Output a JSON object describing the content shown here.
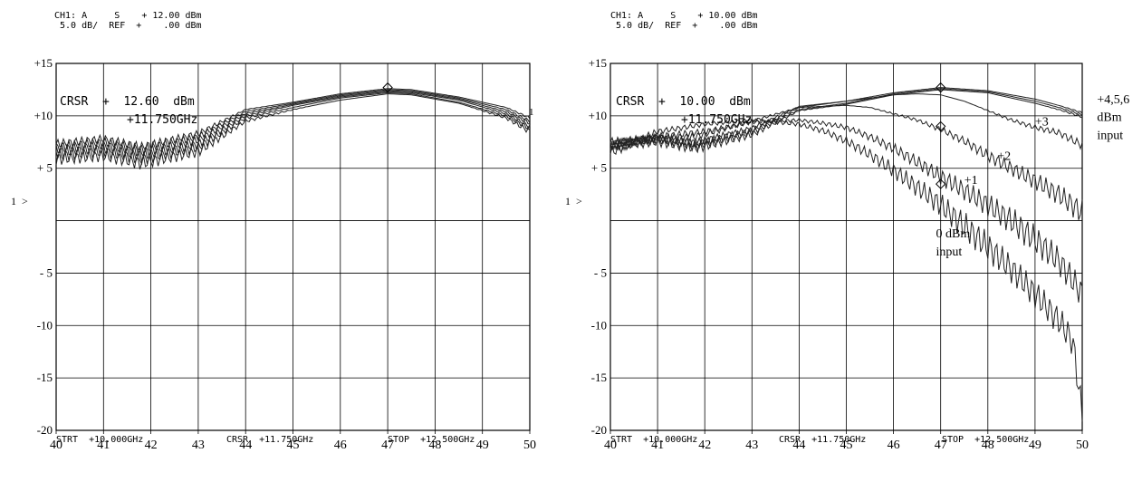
{
  "panels": [
    {
      "header": {
        "line1": "CH1: A     S    + 12.00 dBm",
        "line2": " 5.0 dB/  REF  +    .00 dBm"
      },
      "cursor": {
        "line1": "CRSR  +  12.60  dBm",
        "line2": "+11.750GHz"
      },
      "footer": {
        "start": "STRT  +10.000GHz",
        "center": "CRSR  +11.750GHz",
        "stop": "STOP  +12.500GHz"
      },
      "ref_marker": "1  >",
      "end_marker": "1",
      "annotations": []
    },
    {
      "header": {
        "line1": "CH1: A     S    + 10.00 dBm",
        "line2": " 5.0 dB/  REF  +    .00 dBm"
      },
      "cursor": {
        "line1": "CRSR  +  10.00  dBm",
        "line2": "+11.750GHz"
      },
      "footer": {
        "start": "STRT  +10.000GHz",
        "center": "CRSR  +11.750GHz",
        "stop": "STOP  +12.500GHz"
      },
      "ref_marker": "1  >",
      "end_marker": "",
      "annotations": [
        {
          "text": "+4,5,6",
          "x": 50.2,
          "y": 11.2
        },
        {
          "text": "dBm",
          "x": 50.2,
          "y": 9.5
        },
        {
          "text": "input",
          "x": 50.2,
          "y": 7.8
        },
        {
          "text": "+3",
          "x": 49.0,
          "y": 9.1
        },
        {
          "text": "+2",
          "x": 48.2,
          "y": 5.8
        },
        {
          "text": "+1",
          "x": 47.5,
          "y": 3.5
        },
        {
          "text": "0 dBm",
          "x": 46.9,
          "y": -1.6
        },
        {
          "text": "input",
          "x": 46.9,
          "y": -3.3
        }
      ]
    }
  ],
  "chart_data": [
    {
      "type": "line",
      "x_ticks": [
        "40",
        "41",
        "42",
        "43",
        "44",
        "45",
        "46",
        "47",
        "48",
        "49",
        "50"
      ],
      "y_ticks": [
        "+15",
        "+10",
        "+ 5",
        "",
        "- 5",
        "-10",
        "-15",
        "-20"
      ],
      "xlim": [
        40,
        50
      ],
      "ylim": [
        -20,
        15
      ],
      "grid": true,
      "series": [
        {
          "x": [
            40,
            41,
            41.8,
            43,
            44,
            45,
            46,
            47,
            47.5,
            48.5,
            49.5,
            50
          ],
          "values": [
            7.3,
            7.8,
            7.0,
            8.3,
            10.6,
            11.3,
            12.1,
            12.6,
            12.5,
            11.8,
            10.8,
            9.8
          ]
        },
        {
          "x": [
            40,
            41,
            41.8,
            43,
            44,
            45,
            46,
            47,
            47.5,
            48.5,
            49.5,
            50
          ],
          "values": [
            7.0,
            7.5,
            6.8,
            8.0,
            10.4,
            11.2,
            12.0,
            12.5,
            12.4,
            11.7,
            10.6,
            9.5
          ]
        },
        {
          "x": [
            40,
            41,
            41.8,
            43,
            44,
            45,
            46,
            47,
            47.5,
            48.5,
            49.5,
            50
          ],
          "values": [
            6.8,
            7.2,
            6.5,
            7.7,
            10.2,
            11.1,
            11.9,
            12.4,
            12.3,
            11.6,
            10.4,
            9.3
          ]
        },
        {
          "x": [
            40,
            41,
            41.8,
            43,
            44,
            45,
            46,
            47,
            47.5,
            48.5,
            49.5,
            50
          ],
          "values": [
            6.5,
            6.9,
            6.2,
            7.3,
            10.0,
            11.0,
            11.8,
            12.3,
            12.2,
            11.5,
            10.2,
            9.0
          ]
        },
        {
          "x": [
            40,
            41,
            41.8,
            43,
            44,
            45,
            46,
            47,
            47.5,
            48.5,
            49.5,
            50
          ],
          "values": [
            6.2,
            6.6,
            5.9,
            7.0,
            9.8,
            10.8,
            11.7,
            12.2,
            12.1,
            11.3,
            10.0,
            8.8
          ]
        },
        {
          "x": [
            40,
            41,
            41.8,
            43,
            44,
            45,
            46,
            47,
            47.5,
            48.5,
            49.5,
            50
          ],
          "values": [
            5.9,
            6.2,
            5.5,
            6.6,
            9.5,
            10.6,
            11.5,
            12.1,
            12.0,
            11.2,
            9.8,
            8.5
          ]
        }
      ]
    },
    {
      "type": "line",
      "x_ticks": [
        "40",
        "41",
        "42",
        "43",
        "44",
        "45",
        "46",
        "47",
        "48",
        "49",
        "50"
      ],
      "y_ticks": [
        "+15",
        "+10",
        "+ 5",
        "",
        "- 5",
        "-10",
        "-15",
        "-20"
      ],
      "xlim": [
        40,
        50
      ],
      "ylim": [
        -20,
        15
      ],
      "grid": true,
      "series": [
        {
          "x": [
            40,
            41,
            41.8,
            43,
            44,
            45,
            46,
            47,
            48,
            49,
            49.5,
            50
          ],
          "values": [
            7.5,
            7.9,
            7.3,
            8.6,
            10.8,
            11.4,
            12.2,
            12.7,
            12.4,
            11.6,
            11.0,
            10.3
          ]
        },
        {
          "x": [
            40,
            41,
            41.8,
            43,
            44,
            45,
            46,
            47,
            48,
            49,
            49.5,
            50
          ],
          "values": [
            7.3,
            7.7,
            7.1,
            8.4,
            10.6,
            11.2,
            12.1,
            12.6,
            12.3,
            11.4,
            10.8,
            10.1
          ]
        },
        {
          "x": [
            40,
            41,
            41.8,
            43,
            44,
            45,
            46,
            47,
            48,
            49,
            49.5,
            50
          ],
          "values": [
            7.1,
            7.5,
            6.9,
            8.2,
            10.5,
            11.1,
            12.0,
            12.5,
            12.2,
            11.2,
            10.6,
            9.9
          ]
        },
        {
          "x": [
            40,
            41,
            41.8,
            43,
            44,
            45,
            46,
            46.5,
            47,
            47.5,
            48,
            48.5,
            49,
            49.5,
            50
          ],
          "values": [
            7.3,
            7.8,
            7.4,
            8.8,
            10.9,
            11.4,
            12.0,
            12.1,
            12.0,
            11.4,
            10.5,
            9.6,
            8.9,
            8.4,
            7.2
          ]
        },
        {
          "x": [
            40,
            41,
            41.8,
            43,
            44,
            45,
            45.5,
            46,
            46.5,
            47,
            47.5,
            48,
            48.5,
            49,
            49.5,
            50
          ],
          "values": [
            7.0,
            7.9,
            8.0,
            9.5,
            10.8,
            11.0,
            10.8,
            10.2,
            9.6,
            8.7,
            7.6,
            6.2,
            5.0,
            3.8,
            2.5,
            0.8
          ]
        },
        {
          "x": [
            40,
            41,
            42,
            43,
            44,
            44.5,
            45,
            45.5,
            46,
            46.5,
            47,
            47.5,
            48,
            48.5,
            49,
            49.5,
            50
          ],
          "values": [
            7.2,
            8.0,
            8.5,
            9.4,
            9.6,
            9.3,
            8.9,
            8.0,
            6.9,
            5.6,
            4.2,
            2.9,
            1.5,
            0.0,
            -1.8,
            -3.8,
            -7.0
          ]
        },
        {
          "x": [
            40,
            41,
            42,
            43,
            44,
            44.5,
            45,
            45.5,
            46,
            46.5,
            47,
            47.5,
            48,
            48.5,
            49,
            49.5,
            49.8,
            50
          ],
          "values": [
            6.5,
            8.5,
            9.2,
            9.6,
            9.2,
            8.6,
            7.6,
            6.3,
            4.8,
            3.2,
            1.5,
            -0.5,
            -2.5,
            -4.6,
            -7.0,
            -9.5,
            -11.5,
            -18.5
          ]
        }
      ]
    }
  ]
}
